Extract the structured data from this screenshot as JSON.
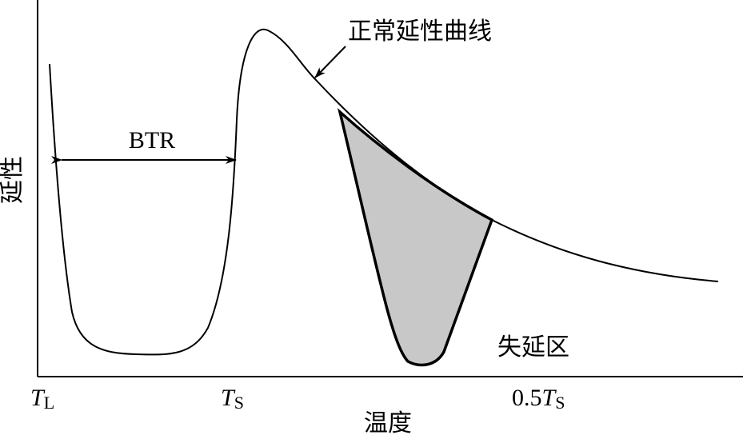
{
  "diagram": {
    "y_axis_label": "延性",
    "x_axis_label": "温度",
    "x_marks": [
      {
        "symbol": "T",
        "subscript": "L"
      },
      {
        "symbol": "T",
        "subscript": "S"
      },
      {
        "prefix": "0.5",
        "symbol": "T",
        "subscript": "S"
      }
    ],
    "annotations": {
      "btr": "BTR",
      "normal_curve": "正常延性曲线",
      "loss_zone": "失延区"
    }
  }
}
